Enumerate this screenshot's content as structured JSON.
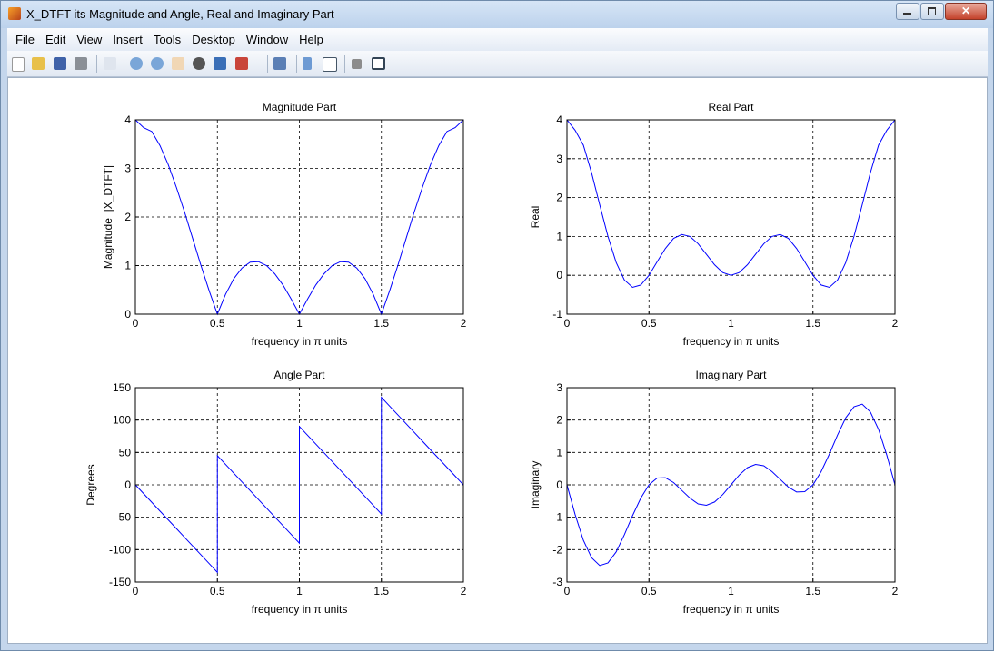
{
  "window": {
    "title": "X_DTFT its Magnitude and Angle, Real and Imaginary Part",
    "menu": [
      "File",
      "Edit",
      "View",
      "Insert",
      "Tools",
      "Desktop",
      "Window",
      "Help"
    ]
  },
  "chart_data": [
    {
      "type": "line",
      "title": "Magnitude Part",
      "xlabel": "frequency in π units",
      "ylabel": "Magnitude  |X_DTFT|",
      "x": [
        0,
        0.05,
        0.1,
        0.15,
        0.2,
        0.25,
        0.3,
        0.35,
        0.4,
        0.45,
        0.5,
        0.55,
        0.6,
        0.65,
        0.7,
        0.75,
        0.8,
        0.85,
        0.9,
        0.95,
        1,
        1.05,
        1.1,
        1.15,
        1.2,
        1.25,
        1.3,
        1.35,
        1.4,
        1.45,
        1.5,
        1.55,
        1.6,
        1.65,
        1.7,
        1.75,
        1.8,
        1.85,
        1.9,
        1.95,
        2
      ],
      "values": [
        4,
        3.84,
        3.76,
        3.47,
        3.08,
        2.61,
        2.1,
        1.55,
        1,
        0.48,
        0,
        0.41,
        0.73,
        0.95,
        1.07,
        1.08,
        1,
        0.83,
        0.6,
        0.31,
        0,
        0.31,
        0.6,
        0.83,
        1,
        1.08,
        1.07,
        0.95,
        0.73,
        0.41,
        0,
        0.48,
        1,
        1.55,
        2.1,
        2.61,
        3.08,
        3.47,
        3.76,
        3.84,
        4
      ],
      "color": "#0000ff",
      "xlim": [
        0,
        2
      ],
      "ylim": [
        0,
        4
      ],
      "xticks": [
        0,
        0.5,
        1,
        1.5,
        2
      ],
      "yticks": [
        0,
        1,
        2,
        3,
        4
      ],
      "grid": true
    },
    {
      "type": "line",
      "title": "Real Part",
      "xlabel": "frequency in π units",
      "ylabel": "Real",
      "x": [
        0,
        0.05,
        0.1,
        0.15,
        0.2,
        0.25,
        0.3,
        0.35,
        0.4,
        0.45,
        0.5,
        0.55,
        0.6,
        0.65,
        0.7,
        0.75,
        0.8,
        0.85,
        0.9,
        0.95,
        1,
        1.05,
        1.1,
        1.15,
        1.2,
        1.25,
        1.3,
        1.35,
        1.4,
        1.45,
        1.5,
        1.55,
        1.6,
        1.65,
        1.7,
        1.75,
        1.8,
        1.85,
        1.9,
        1.95,
        2
      ],
      "values": [
        4,
        3.73,
        3.35,
        2.64,
        1.81,
        1,
        0.33,
        -0.12,
        -0.31,
        -0.25,
        0,
        0.35,
        0.69,
        0.95,
        1.05,
        1,
        0.81,
        0.54,
        0.27,
        0.07,
        0,
        0.07,
        0.27,
        0.54,
        0.81,
        1,
        1.05,
        0.95,
        0.69,
        0.35,
        0,
        -0.25,
        -0.31,
        -0.12,
        0.33,
        1,
        1.81,
        2.64,
        3.35,
        3.73,
        4
      ],
      "color": "#0000ff",
      "xlim": [
        0,
        2
      ],
      "ylim": [
        -1,
        4
      ],
      "xticks": [
        0,
        0.5,
        1,
        1.5,
        2
      ],
      "yticks": [
        -1,
        0,
        1,
        2,
        3,
        4
      ],
      "grid": true
    },
    {
      "type": "line",
      "title": "Angle Part",
      "xlabel": "frequency in π units",
      "ylabel": "Degrees",
      "x": [
        0,
        0.05,
        0.1,
        0.15,
        0.2,
        0.25,
        0.3,
        0.35,
        0.4,
        0.45,
        0.5,
        0.5,
        0.55,
        0.6,
        0.65,
        0.7,
        0.75,
        0.8,
        0.85,
        0.9,
        0.95,
        1,
        1,
        1.05,
        1.1,
        1.15,
        1.2,
        1.25,
        1.3,
        1.35,
        1.4,
        1.45,
        1.5,
        1.5,
        1.55,
        1.6,
        1.65,
        1.7,
        1.75,
        1.8,
        1.85,
        1.9,
        1.95,
        2
      ],
      "values": [
        0,
        -13.5,
        -27,
        -40.5,
        -54,
        -67.5,
        -81,
        -94.5,
        -108,
        -121.5,
        -135,
        45,
        31.5,
        18,
        4.5,
        -9,
        -22.5,
        -36,
        -49.5,
        -63,
        -76.5,
        -90,
        90,
        76.5,
        63,
        49.5,
        36,
        22.5,
        9,
        -4.5,
        -18,
        -31.5,
        -45,
        135,
        121.5,
        108,
        94.5,
        81,
        67.5,
        54,
        40.5,
        27,
        13.5,
        0
      ],
      "color": "#0000ff",
      "xlim": [
        0,
        2
      ],
      "ylim": [
        -150,
        150
      ],
      "xticks": [
        0,
        0.5,
        1,
        1.5,
        2
      ],
      "yticks": [
        -150,
        -100,
        -50,
        0,
        50,
        100,
        150
      ],
      "grid": true
    },
    {
      "type": "line",
      "title": "Imaginary Part",
      "xlabel": "frequency in π units",
      "ylabel": "Imaginary",
      "x": [
        0,
        0.05,
        0.1,
        0.15,
        0.2,
        0.25,
        0.3,
        0.35,
        0.4,
        0.45,
        0.5,
        0.55,
        0.6,
        0.65,
        0.7,
        0.75,
        0.8,
        0.85,
        0.9,
        0.95,
        1,
        1.05,
        1.1,
        1.15,
        1.2,
        1.25,
        1.3,
        1.35,
        1.4,
        1.45,
        1.5,
        1.55,
        1.6,
        1.65,
        1.7,
        1.75,
        1.8,
        1.85,
        1.9,
        1.95,
        2
      ],
      "values": [
        0,
        -0.92,
        -1.71,
        -2.25,
        -2.49,
        -2.41,
        -2.07,
        -1.54,
        -0.95,
        -0.41,
        0,
        0.21,
        0.22,
        0.07,
        -0.17,
        -0.41,
        -0.59,
        -0.63,
        -0.53,
        -0.3,
        0,
        0.3,
        0.53,
        0.63,
        0.59,
        0.41,
        0.17,
        -0.07,
        -0.22,
        -0.21,
        0,
        0.41,
        0.95,
        1.54,
        2.07,
        2.41,
        2.49,
        2.25,
        1.71,
        0.92,
        0
      ],
      "color": "#0000ff",
      "xlim": [
        0,
        2
      ],
      "ylim": [
        -3,
        3
      ],
      "xticks": [
        0,
        0.5,
        1,
        1.5,
        2
      ],
      "yticks": [
        -3,
        -2,
        -1,
        0,
        1,
        2,
        3
      ],
      "grid": true
    }
  ]
}
